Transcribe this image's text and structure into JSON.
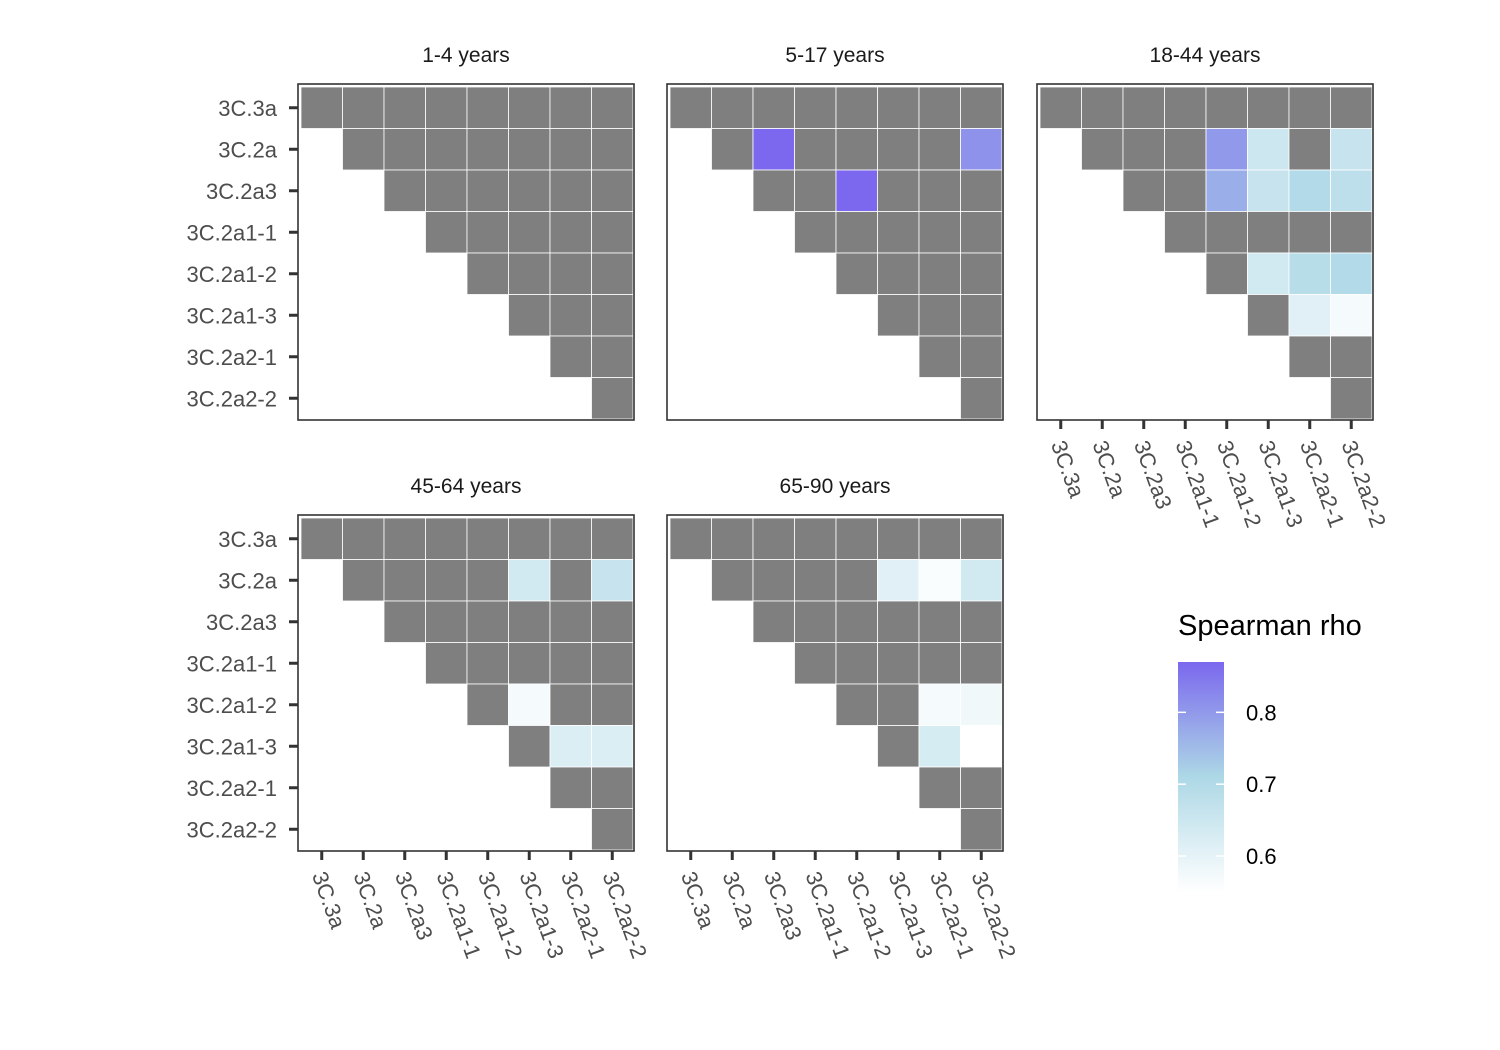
{
  "chart_data": {
    "type": "heatmap",
    "strains": [
      "3C.3a",
      "3C.2a",
      "3C.2a3",
      "3C.2a1-1",
      "3C.2a1-2",
      "3C.2a1-3",
      "3C.2a2-1",
      "3C.2a2-2"
    ],
    "na_color": "#7f7f7f",
    "legend": {
      "title": "Spearman rho",
      "ticks": [
        "0.6",
        "0.7",
        "0.8"
      ],
      "range": [
        0.55,
        0.87
      ],
      "colors": [
        "#ffffff",
        "#add8e6",
        "#7b68ee"
      ]
    },
    "panels": [
      {
        "title": "1-4 years",
        "cells": []
      },
      {
        "title": "5-17 years",
        "cells": [
          {
            "row": 1,
            "col": 2,
            "value": 0.87
          },
          {
            "row": 1,
            "col": 7,
            "value": 0.81
          },
          {
            "row": 2,
            "col": 4,
            "value": 0.87
          }
        ]
      },
      {
        "title": "18-44 years",
        "cells": [
          {
            "row": 1,
            "col": 4,
            "value": 0.8
          },
          {
            "row": 1,
            "col": 5,
            "value": 0.65
          },
          {
            "row": 1,
            "col": 7,
            "value": 0.66
          },
          {
            "row": 2,
            "col": 4,
            "value": 0.77
          },
          {
            "row": 2,
            "col": 5,
            "value": 0.66
          },
          {
            "row": 2,
            "col": 6,
            "value": 0.7
          },
          {
            "row": 2,
            "col": 7,
            "value": 0.68
          },
          {
            "row": 4,
            "col": 5,
            "value": 0.64
          },
          {
            "row": 4,
            "col": 6,
            "value": 0.69
          },
          {
            "row": 4,
            "col": 7,
            "value": 0.7
          },
          {
            "row": 5,
            "col": 6,
            "value": 0.61
          },
          {
            "row": 5,
            "col": 7,
            "value": 0.57
          }
        ]
      },
      {
        "title": "45-64 years",
        "cells": [
          {
            "row": 1,
            "col": 5,
            "value": 0.64
          },
          {
            "row": 1,
            "col": 7,
            "value": 0.66
          },
          {
            "row": 4,
            "col": 5,
            "value": 0.57
          },
          {
            "row": 5,
            "col": 6,
            "value": 0.62
          },
          {
            "row": 5,
            "col": 7,
            "value": 0.62
          }
        ]
      },
      {
        "title": "65-90 years",
        "cells": [
          {
            "row": 1,
            "col": 5,
            "value": 0.61
          },
          {
            "row": 1,
            "col": 6,
            "value": 0.56
          },
          {
            "row": 1,
            "col": 7,
            "value": 0.64
          },
          {
            "row": 4,
            "col": 6,
            "value": 0.57
          },
          {
            "row": 4,
            "col": 7,
            "value": 0.58
          },
          {
            "row": 5,
            "col": 6,
            "value": 0.63
          },
          {
            "row": 5,
            "col": 7,
            "value": 0.55
          }
        ]
      }
    ]
  }
}
